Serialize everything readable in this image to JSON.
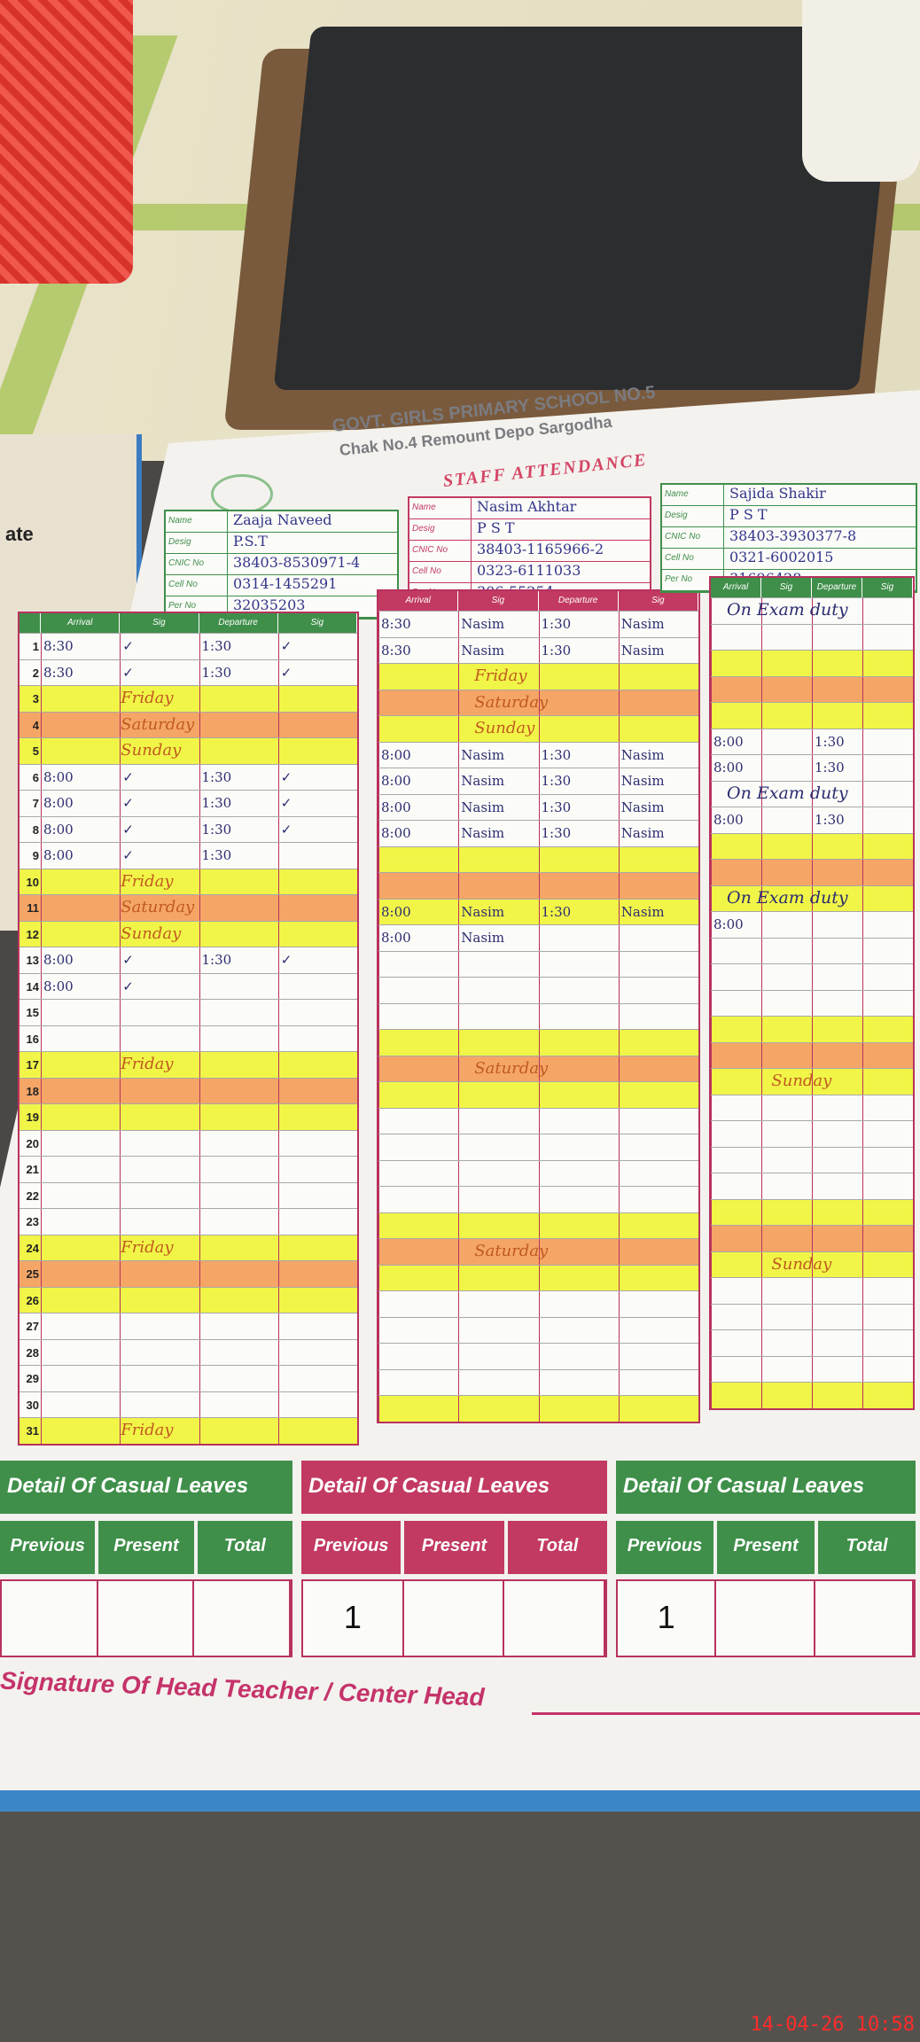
{
  "header": {
    "school": "GOVT. GIRLS PRIMARY SCHOOL NO.5",
    "address": "Chak No.4 Remount Depo Sargodha",
    "title": "STAFF ATTENDANCE"
  },
  "side_label": "ate",
  "info_labels": [
    "Name",
    "Desig",
    "CNIC No",
    "Cell No",
    "Per No"
  ],
  "columns": [
    "Arrival",
    "Sig",
    "Departure",
    "Sig"
  ],
  "colors": {
    "green": "#3f8f4a",
    "crimson": "#c23a62",
    "highlight_yellow": "#f1f547",
    "highlight_orange": "#f5a666"
  },
  "staff": [
    {
      "name": "Zaaja Naveed",
      "desig": "P.S.T",
      "cnic": "38403-8530971-4",
      "cell": "0314-1455291",
      "per": "32035203",
      "header_color": "#3f8f4a",
      "rows": {
        "1": [
          "8:30",
          "✓",
          "1:30",
          "✓"
        ],
        "2": [
          "8:30",
          "✓",
          "1:30",
          "✓"
        ],
        "6": [
          "8:00",
          "✓",
          "1:30",
          "✓"
        ],
        "7": [
          "8:00",
          "✓",
          "1:30",
          "✓"
        ],
        "8": [
          "8:00",
          "✓",
          "1:30",
          "✓"
        ],
        "9": [
          "8:00",
          "✓",
          "1:30",
          ""
        ],
        "13": [
          "8:00",
          "✓",
          "1:30",
          "✓"
        ],
        "14": [
          "8:00",
          "✓",
          "",
          ""
        ]
      },
      "days": {
        "3": "Friday",
        "4": "Saturday",
        "5": "Sunday",
        "10": "Friday",
        "11": "Saturday",
        "12": "Sunday",
        "17": "Friday",
        "24": "Friday",
        "31": "Friday"
      }
    },
    {
      "name": "Nasim Akhtar",
      "desig": "P S T",
      "cnic": "38403-1165966-2",
      "cell": "0323-6111033",
      "per": "306-55254",
      "header_color": "#c23a62",
      "rows": {
        "1": [
          "8:30",
          "Nasim",
          "1:30",
          "Nasim"
        ],
        "2": [
          "8:30",
          "Nasim",
          "1:30",
          "Nasim"
        ],
        "6": [
          "8:00",
          "Nasim",
          "1:30",
          "Nasim"
        ],
        "7": [
          "8:00",
          "Nasim",
          "1:30",
          "Nasim"
        ],
        "8": [
          "8:00",
          "Nasim",
          "1:30",
          "Nasim"
        ],
        "9": [
          "8:00",
          "Nasim",
          "1:30",
          "Nasim"
        ],
        "12": [
          "8:00",
          "Nasim",
          "1:30",
          "Nasim"
        ],
        "13": [
          "8:00",
          "Nasim",
          "",
          ""
        ]
      },
      "days": {
        "3": "Friday",
        "4": "Saturday",
        "5": "Sunday",
        "18": "Saturday",
        "25": "Saturday"
      }
    },
    {
      "name": "Sajida Shakir",
      "desig": "P S T",
      "cnic": "38403-3930377-8",
      "cell": "0321-6002015",
      "per": "31696428",
      "header_color": "#3f8f4a",
      "rows": {
        "6": [
          "8:00",
          "",
          "1:30",
          ""
        ],
        "7": [
          "8:00",
          "",
          "1:30",
          ""
        ],
        "9": [
          "8:00",
          "",
          "1:30",
          ""
        ],
        "13": [
          "8:00",
          "",
          "",
          ""
        ]
      },
      "notes": {
        "1": "On Exam duty",
        "8": "On Exam duty",
        "12": "On Exam duty"
      },
      "days": {
        "19": "Sunday",
        "26": "Sunday"
      }
    }
  ],
  "highlight_rows": {
    "yellow": [
      3,
      5,
      10,
      12,
      17,
      19,
      24,
      26,
      31
    ],
    "orange": [
      4,
      11,
      18,
      25
    ]
  },
  "casual_leaves": {
    "title": "Detail Of Casual Leaves",
    "previous": "Previous",
    "present": "Present",
    "total": "Total",
    "values": [
      [
        "",
        "",
        ""
      ],
      [
        "1",
        "",
        ""
      ],
      [
        "1",
        "",
        ""
      ]
    ]
  },
  "signature": "Signature Of Head Teacher / Center Head",
  "timestamp": "14-04-26 10:58"
}
